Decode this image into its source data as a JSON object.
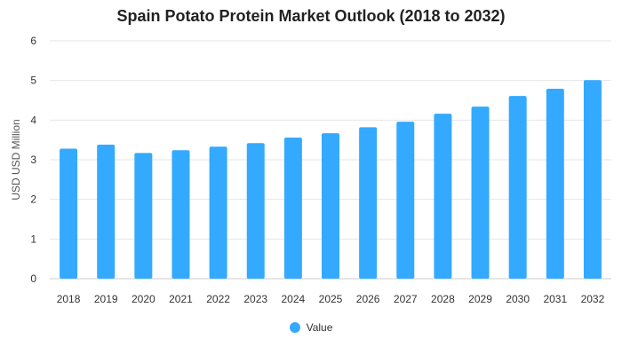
{
  "chart_data": {
    "type": "bar",
    "title": "Spain Potato Protein Market Outlook (2018 to 2032)",
    "ylabel": "USD USD Million",
    "xlabel": "",
    "categories": [
      "2018",
      "2019",
      "2020",
      "2021",
      "2022",
      "2023",
      "2024",
      "2025",
      "2026",
      "2027",
      "2028",
      "2029",
      "2030",
      "2031",
      "2032"
    ],
    "series": [
      {
        "name": "Value",
        "values": [
          3.28,
          3.38,
          3.17,
          3.24,
          3.33,
          3.42,
          3.56,
          3.67,
          3.82,
          3.96,
          4.16,
          4.34,
          4.61,
          4.79,
          5.01
        ]
      }
    ],
    "ylim": [
      0,
      6
    ],
    "yticks": [
      "0",
      "1",
      "2",
      "3",
      "4",
      "5",
      "6"
    ],
    "grid": true,
    "legend_position": "bottom",
    "colors": {
      "bar": "#33aaff",
      "grid": "#e6e6e6",
      "axis": "#cccccc"
    }
  }
}
